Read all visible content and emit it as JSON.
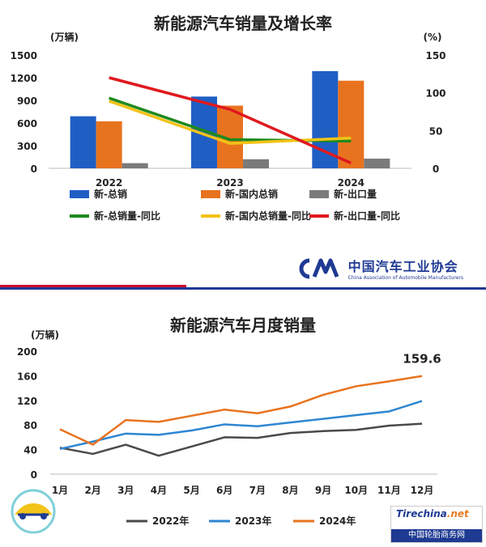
{
  "top_chart": {
    "title": "新能源汽车销量及增长率",
    "left_unit": "(万辆)",
    "right_unit": "(%)",
    "left_ticks": [
      "1500",
      "1200",
      "900",
      "600",
      "300",
      "0"
    ],
    "right_ticks": [
      "150",
      "100",
      "50",
      "0"
    ],
    "legend": [
      {
        "label": "新-总销",
        "color": "#1f5fc4",
        "kind": "bar"
      },
      {
        "label": "新-国内总销",
        "color": "#e8731f",
        "kind": "bar"
      },
      {
        "label": "新-出口量",
        "color": "#7a7a7a",
        "kind": "bar"
      },
      {
        "label": "新-总销量-同比",
        "color": "#1e8a1e",
        "kind": "line"
      },
      {
        "label": "新-国内总销量-同比",
        "color": "#f2c318",
        "kind": "line"
      },
      {
        "label": "新-出口量-同比",
        "color": "#e0191e",
        "kind": "line"
      }
    ]
  },
  "bottom_chart": {
    "title": "新能源汽车月度销量",
    "unit": "(万辆)",
    "y_ticks": [
      "200",
      "160",
      "120",
      "80",
      "40",
      "0"
    ],
    "callout": "159.6",
    "legend": [
      {
        "label": "2022年",
        "color": "#4a4a4a"
      },
      {
        "label": "2023年",
        "color": "#2e86d1"
      },
      {
        "label": "2024年",
        "color": "#e8731f"
      }
    ]
  },
  "logo": {
    "name_cn": "中国汽车工业协会",
    "name_en": "China Association of Automobile Manufacturers"
  },
  "badge": {
    "site": "Tirechina",
    "site_suffix": ".net",
    "name_cn": "中国轮胎商务网"
  },
  "chart_data": [
    {
      "type": "bar",
      "title": "新能源汽车销量及增长率",
      "categories": [
        "2022",
        "2023",
        "2024"
      ],
      "ylabel": "(万辆)",
      "ylim": [
        0,
        1500
      ],
      "y2label": "(%)",
      "y2lim": [
        0,
        150
      ],
      "series": [
        {
          "name": "新-总销",
          "kind": "bar",
          "axis": "left",
          "values": [
            689,
            950,
            1287
          ]
        },
        {
          "name": "新-国内总销",
          "kind": "bar",
          "axis": "left",
          "values": [
            622,
            830,
            1160
          ]
        },
        {
          "name": "新-出口量",
          "kind": "bar",
          "axis": "left",
          "values": [
            68,
            120,
            128
          ]
        },
        {
          "name": "新-总销量-同比",
          "kind": "line",
          "axis": "right",
          "values": [
            93,
            38,
            36
          ]
        },
        {
          "name": "新-国内总销量-同比",
          "kind": "line",
          "axis": "right",
          "values": [
            89,
            33,
            40
          ]
        },
        {
          "name": "新-出口量-同比",
          "kind": "line",
          "axis": "right",
          "values": [
            120,
            78,
            7
          ]
        }
      ],
      "grid": false,
      "legend_position": "bottom"
    },
    {
      "type": "line",
      "title": "新能源汽车月度销量",
      "categories": [
        "1月",
        "2月",
        "3月",
        "4月",
        "5月",
        "6月",
        "7月",
        "8月",
        "9月",
        "10月",
        "11月",
        "12月"
      ],
      "ylabel": "(万辆)",
      "ylim": [
        0,
        200
      ],
      "series": [
        {
          "name": "2022年",
          "values": [
            43,
            33,
            48,
            30,
            45,
            60,
            59,
            67,
            70,
            72,
            79,
            82
          ]
        },
        {
          "name": "2023年",
          "values": [
            41,
            53,
            66,
            64,
            71,
            81,
            78,
            84,
            90,
            96,
            102,
            119
          ]
        },
        {
          "name": "2024年",
          "values": [
            73,
            48,
            88,
            85,
            95,
            105,
            99,
            110,
            129,
            143,
            151,
            159.6
          ]
        }
      ],
      "grid": false,
      "legend_position": "bottom"
    }
  ]
}
